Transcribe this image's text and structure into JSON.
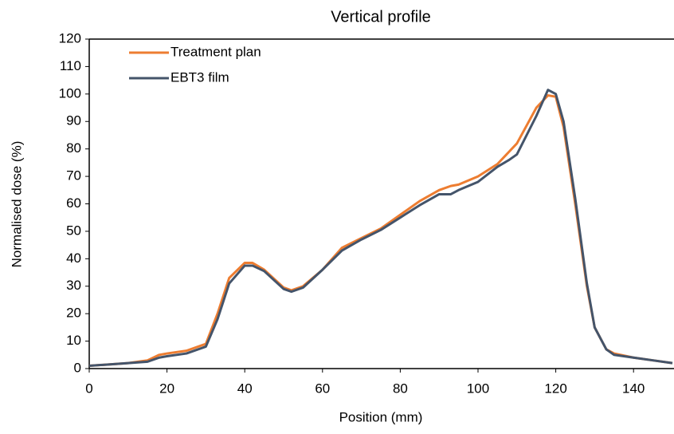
{
  "chart_data": {
    "type": "line",
    "title": "Vertical profile",
    "x_label": "Position (mm)",
    "y_label": "Normalised dose (%)",
    "x": [
      0,
      5,
      10,
      15,
      18,
      20,
      25,
      30,
      33,
      36,
      40,
      42,
      45,
      50,
      52,
      55,
      60,
      65,
      70,
      75,
      80,
      85,
      90,
      93,
      95,
      100,
      105,
      108,
      110,
      115,
      118,
      120,
      122,
      125,
      128,
      130,
      133,
      135,
      140,
      145,
      150
    ],
    "series": [
      {
        "name": "Treatment plan",
        "color": "#ed7d31",
        "values": [
          1,
          1.5,
          2,
          3,
          5,
          5.5,
          6.5,
          9,
          20,
          33,
          38.5,
          38.5,
          36,
          29.5,
          28.5,
          30,
          36,
          44,
          47.5,
          51,
          56,
          61,
          65,
          66.5,
          67,
          70,
          74.5,
          79,
          82,
          95,
          99.5,
          99,
          88,
          60,
          30,
          15,
          7,
          5.5,
          4,
          3,
          2
        ]
      },
      {
        "name": "EBT3 film",
        "color": "#44546a",
        "values": [
          1,
          1.5,
          2,
          2.5,
          4,
          4.5,
          5.5,
          8,
          18,
          31,
          37.5,
          37.5,
          35.5,
          29,
          28,
          29.5,
          36,
          43,
          47,
          50.5,
          55,
          59.5,
          63.5,
          63.5,
          65,
          68,
          73.5,
          76,
          78,
          92,
          101.5,
          100,
          90,
          62,
          31,
          15,
          7,
          5,
          4,
          3,
          2
        ]
      }
    ],
    "xlim": [
      0,
      150
    ],
    "ylim": [
      0,
      120
    ],
    "xticks": [
      0,
      20,
      40,
      60,
      80,
      100,
      120,
      140
    ],
    "yticks": [
      0,
      10,
      20,
      30,
      40,
      50,
      60,
      70,
      80,
      90,
      100,
      110,
      120
    ],
    "grid": false,
    "legend": "upper left"
  }
}
